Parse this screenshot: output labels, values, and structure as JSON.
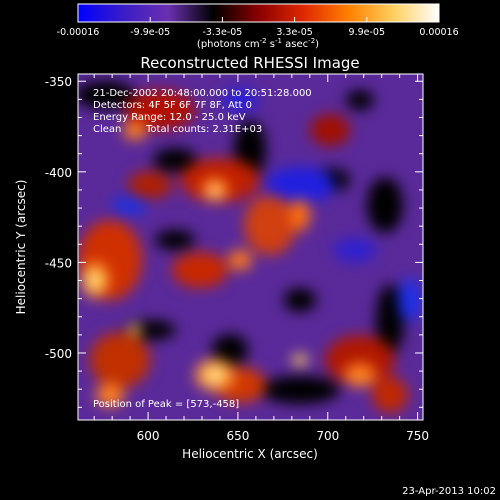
{
  "colorbar": {
    "ticks": [
      "-0.00016",
      "-9.9e-05",
      "-3.3e-05",
      "3.3e-05",
      "9.9e-05",
      "0.00016"
    ],
    "unit_label": "(photons cm",
    "unit_sup1": "-2",
    "unit_mid": " s",
    "unit_sup2": "-1",
    "unit_mid2": " asec",
    "unit_sup3": "-2",
    "unit_end": ")",
    "stops": [
      "#0000ff",
      "#3a1cc8",
      "#6a30b0",
      "#000000",
      "#8a0000",
      "#e02800",
      "#ff8000",
      "#ffd060",
      "#ffffff"
    ]
  },
  "chart_data": {
    "type": "heatmap",
    "title": "Reconstructed RHESSI Image",
    "xlabel": "Heliocentric X (arcsec)",
    "ylabel": "Heliocentric Y (arcsec)",
    "xlim": [
      561,
      753
    ],
    "ylim": [
      -537,
      -346
    ],
    "x_ticks": [
      "600",
      "650",
      "700",
      "750"
    ],
    "x_tick_values": [
      600,
      650,
      700,
      750
    ],
    "y_ticks": [
      "-350",
      "-400",
      "-450",
      "-500"
    ],
    "y_tick_values": [
      -350,
      -400,
      -450,
      -500
    ],
    "annotations": {
      "time": "21-Dec-2002 20:48:00.000 to 20:51:28.000",
      "detectors": "Detectors: 4F 5F 6F 7F 8F, Att 0",
      "energy": "Energy Range: 12.0 - 25.0 keV",
      "clean": "Clean",
      "counts": "Total counts: 2.31E+03",
      "peak": "Position of Peak = [573,-458]"
    },
    "peak_position": [
      573,
      -458
    ]
  },
  "footer": {
    "date": "23-Apr-2013 10:02"
  }
}
